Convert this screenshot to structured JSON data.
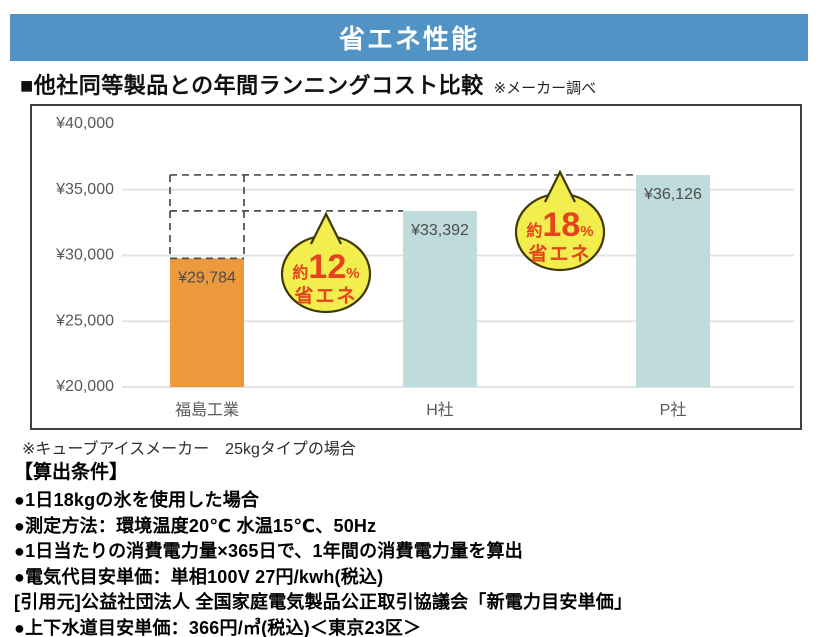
{
  "header": {
    "title": "省エネ性能",
    "bg_color": "#5193c4"
  },
  "section": {
    "title": "■他社同等製品との年間ランニングコスト比較",
    "note": "※メーカー調べ"
  },
  "chart_data": {
    "type": "bar",
    "title": "他社同等製品との年間ランニングコスト比較",
    "categories": [
      "福島工業",
      "H社",
      "P社"
    ],
    "values": [
      29784,
      33392,
      36126
    ],
    "value_labels": [
      "¥29,784",
      "¥33,392",
      "¥36,126"
    ],
    "bar_colors": [
      "#ec9a3d",
      "#bfdbdc",
      "#bfdbdc"
    ],
    "ylim": [
      20000,
      40000
    ],
    "ytick_values": [
      40000,
      35000,
      30000,
      25000,
      20000
    ],
    "ytick_labels": [
      "¥40,000",
      "¥35,000",
      "¥30,000",
      "¥25,000",
      "¥20,000"
    ],
    "grid": true,
    "legend": "none",
    "xlabel": "",
    "ylabel": "",
    "annotations": [
      {
        "prefix": "約",
        "value": "12",
        "unit": "%",
        "line2": "省エネ",
        "meaning": "福島工業はH社より約12%省エネ"
      },
      {
        "prefix": "約",
        "value": "18",
        "unit": "%",
        "line2": "省エネ",
        "meaning": "福島工業はP社より約18%省エネ"
      }
    ],
    "dashed_guides": "福島工業の棒からH社(¥33,392)およびP社(¥36,126)の水準まで破線の比較枠",
    "colors": {
      "bubble_fill": "#f2ee4e",
      "bubble_stroke": "#3f3a05",
      "bubble_text": "#e5431c",
      "gridline": "#e3e3e3",
      "dashed_line": "#4d4d4d",
      "tick_text": "#595959",
      "value_text": "#4c4c4c"
    }
  },
  "chart_note": "※キューブアイスメーカー　25kgタイプの場合",
  "conditions": {
    "heading": "【算出条件】",
    "items": [
      "●1日18kgの氷を使用した場合",
      "●測定方法：環境温度20℃ 水温15℃、50Hz",
      "●1日当たりの消費電力量×365日で、1年間の消費電力量を算出",
      "●電気代目安単価：単相100V 27円/kwh(税込)",
      "[引用元]公益社団法人 全国家庭電気製品公正取引協議会「新電力目安単価」",
      "●上下水道目安単価：366円/㎥(税込)＜東京23区＞"
    ]
  }
}
